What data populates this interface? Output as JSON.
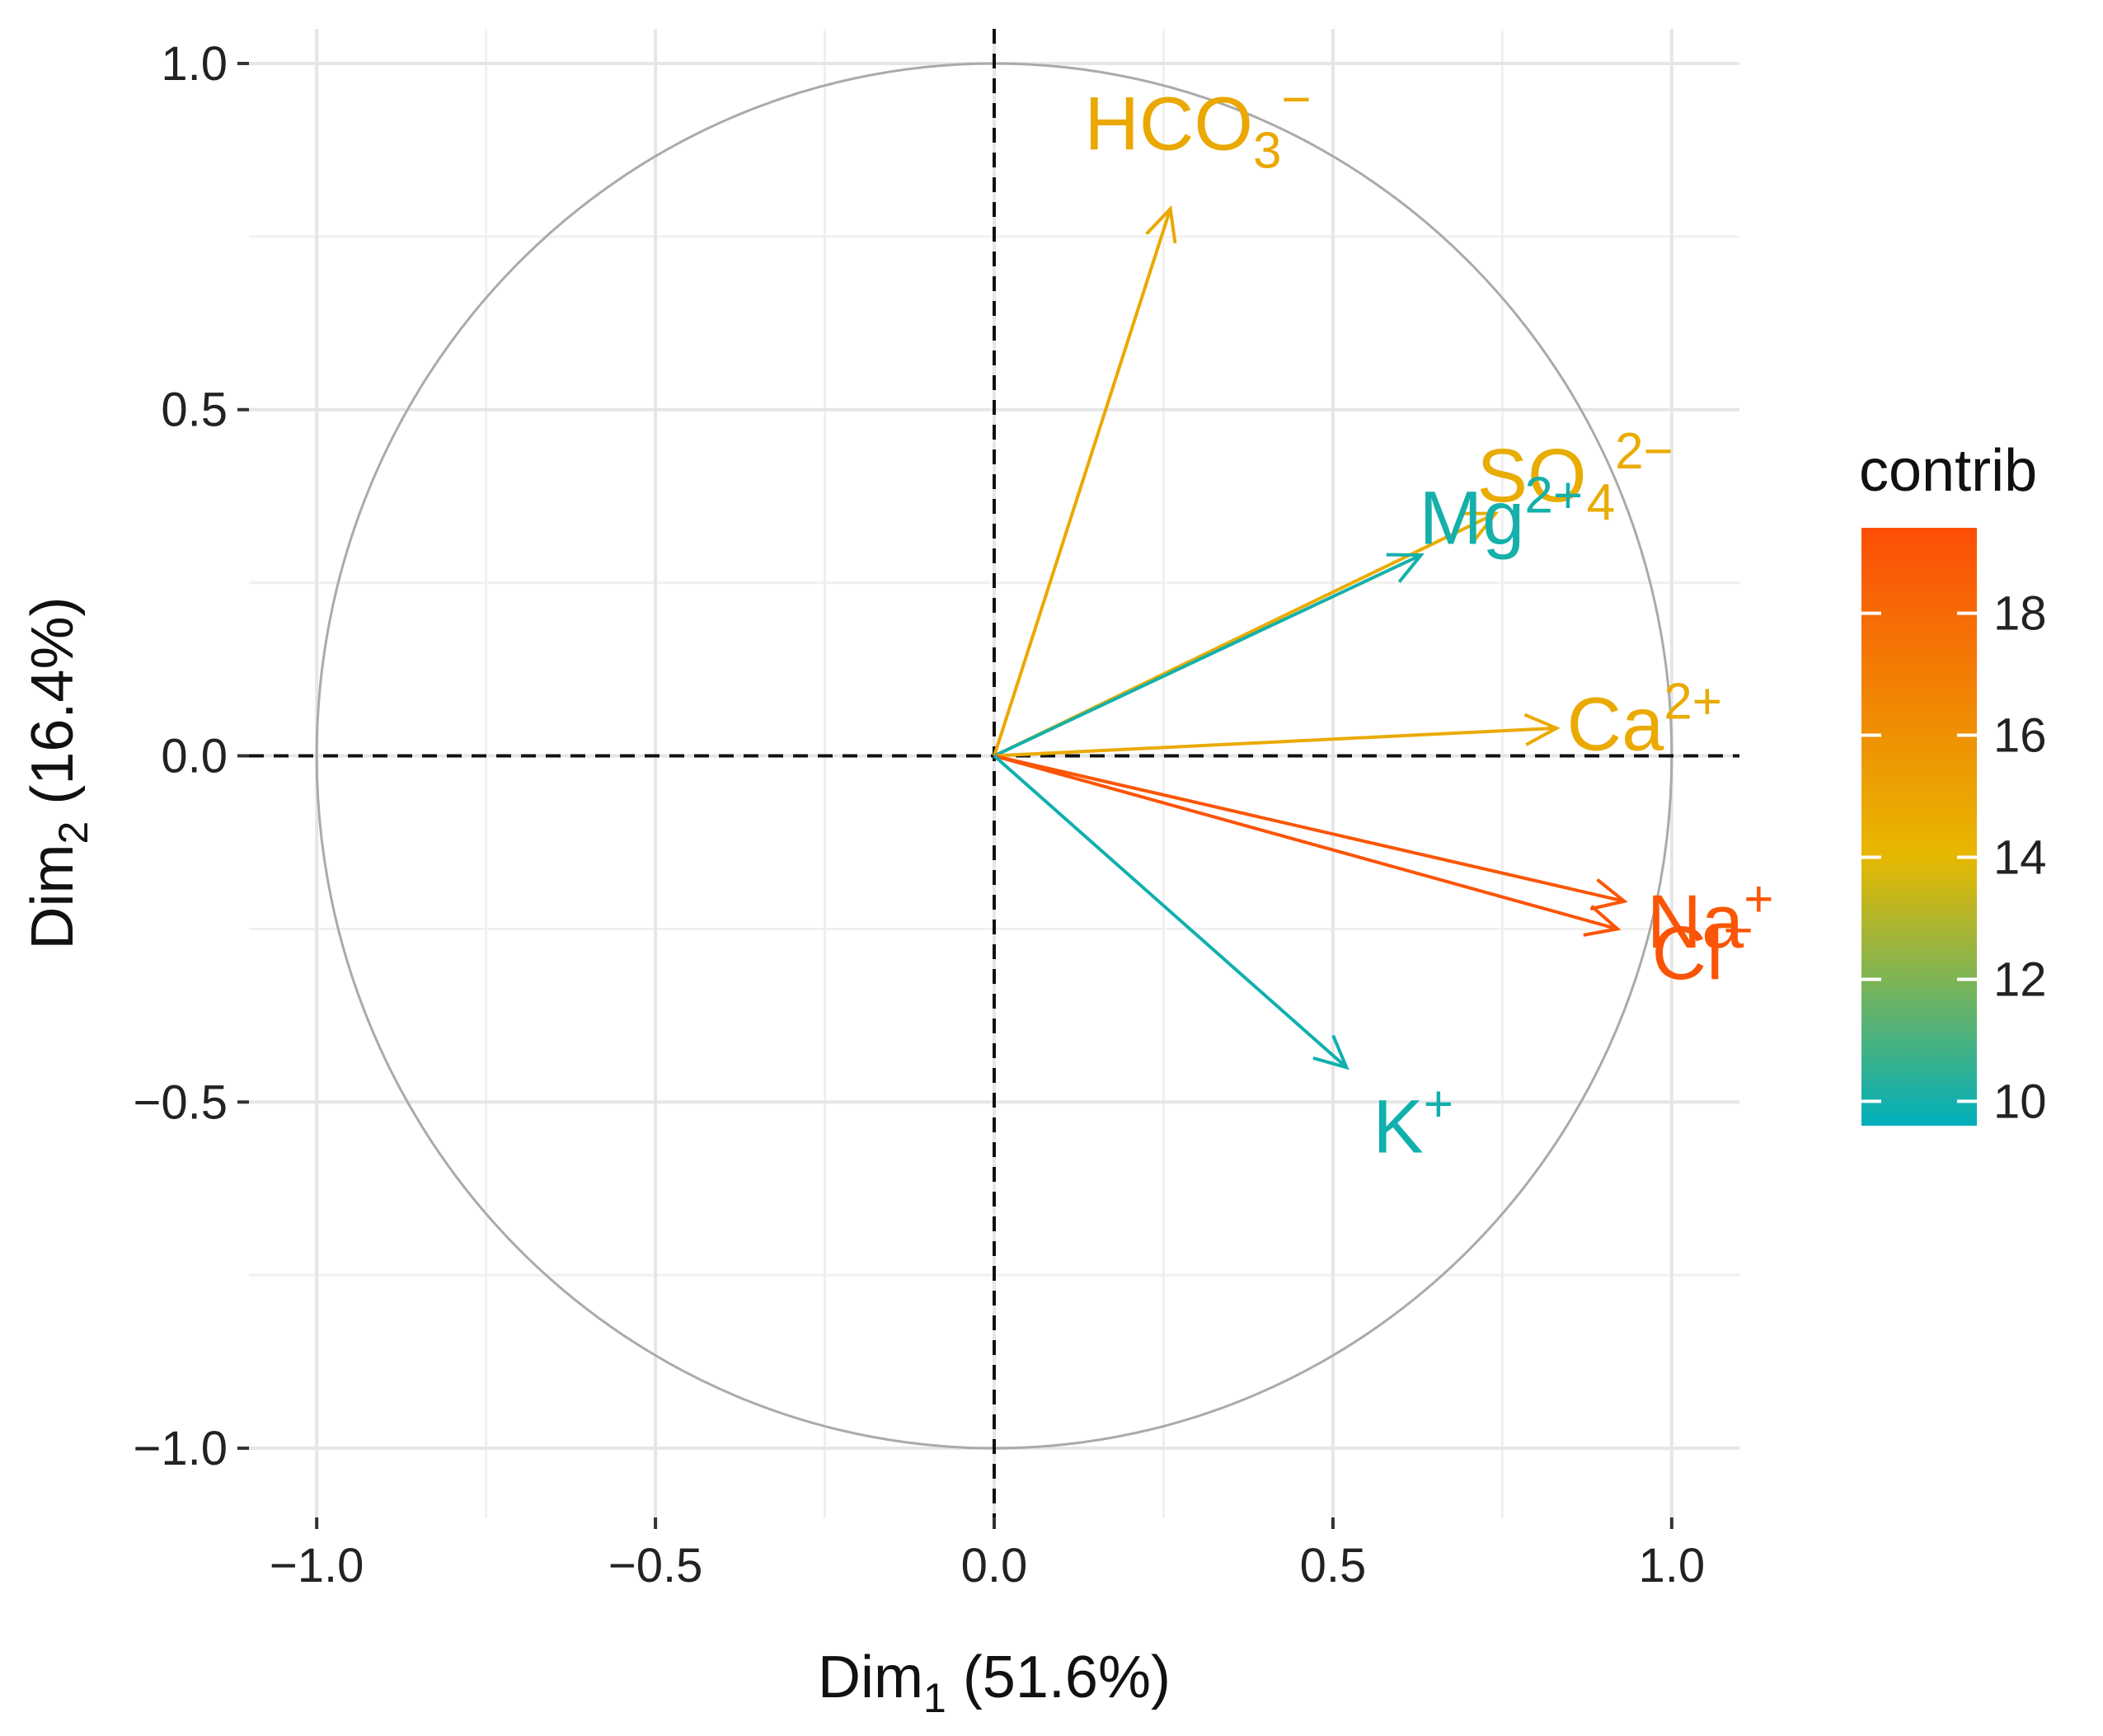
{
  "chart_data": {
    "type": "scatter",
    "subtype": "pca-variable-correlation-circle",
    "xlabel": {
      "base": "Dim",
      "sub": "1",
      "rest": " (51.6%)"
    },
    "ylabel": {
      "base": "Dim",
      "sub": "2",
      "rest": " (16.4%)"
    },
    "xlim": [
      -1.1,
      1.1
    ],
    "ylim": [
      -1.1,
      1.05
    ],
    "x_ticks": [
      -1.0,
      -0.5,
      0.0,
      0.5,
      1.0
    ],
    "x_tick_labels": [
      "−1.0",
      "−0.5",
      "0.0",
      "0.5",
      "1.0"
    ],
    "y_ticks": [
      -1.0,
      -0.5,
      0.0,
      0.5,
      1.0
    ],
    "y_tick_labels": [
      "−1.0",
      "−0.5",
      "0.0",
      "0.5",
      "1.0"
    ],
    "grid": true,
    "unit_circle": true,
    "reference_lines": {
      "x": 0,
      "y": 0,
      "style": "dashed"
    },
    "variables": [
      {
        "name": "HCO3-",
        "base": "HCO",
        "sub": "3",
        "sup": "−",
        "x": 0.26,
        "y": 0.79,
        "contrib": 14.8
      },
      {
        "name": "SO42-",
        "base": "SO",
        "sub": "4",
        "sup": "2−",
        "x": 0.74,
        "y": 0.35,
        "contrib": 14.6
      },
      {
        "name": "Mg2+",
        "base": "Mg",
        "sub": "",
        "sup": "2+",
        "x": 0.63,
        "y": 0.29,
        "contrib": 10.0
      },
      {
        "name": "Ca2+",
        "base": "Ca",
        "sub": "",
        "sup": "2+",
        "x": 0.83,
        "y": 0.04,
        "contrib": 14.7
      },
      {
        "name": "Na+",
        "base": "Na",
        "sub": "",
        "sup": "+",
        "x": 0.93,
        "y": -0.21,
        "contrib": 19.0
      },
      {
        "name": "Cl-",
        "base": "Cl",
        "sub": "",
        "sup": "−",
        "x": 0.92,
        "y": -0.25,
        "contrib": 19.1
      },
      {
        "name": "K+",
        "base": "K",
        "sub": "",
        "sup": "+",
        "x": 0.52,
        "y": -0.45,
        "contrib": 9.9
      }
    ],
    "legend": {
      "title": "contrib",
      "placement": "right",
      "range": [
        9.6,
        19.4
      ],
      "ticks": [
        10,
        12,
        14,
        16,
        18
      ],
      "tick_labels": [
        "10",
        "12",
        "14",
        "16",
        "18"
      ],
      "colors": [
        "#00AFBB",
        "#E7B800",
        "#FC4E07"
      ]
    }
  }
}
